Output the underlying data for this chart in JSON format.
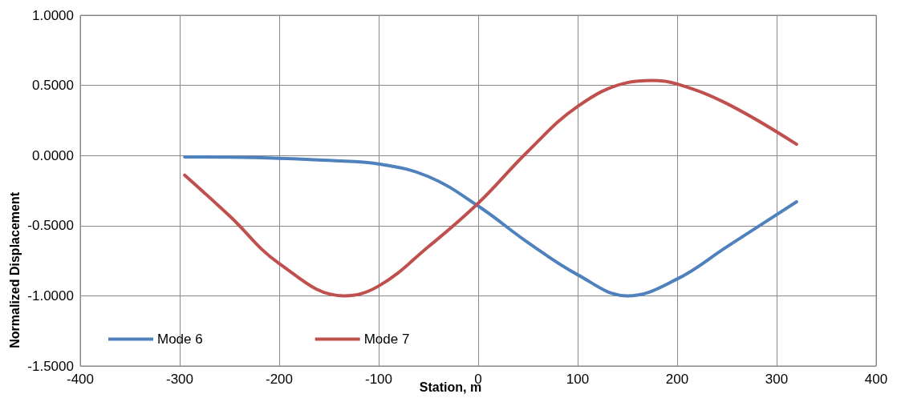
{
  "chart_data": {
    "type": "line",
    "xlabel": "Station, m",
    "ylabel": "Normalized Displacement",
    "xlim": [
      -400,
      400
    ],
    "xticks": [
      -400,
      -300,
      -200,
      -100,
      0,
      100,
      200,
      300,
      400
    ],
    "ylim": [
      -1.5,
      1
    ],
    "yticks": [
      {
        "value": -1.5,
        "label": "-1.5000"
      },
      {
        "value": -1,
        "label": "-1.0000"
      },
      {
        "value": -0.5,
        "label": "-0.5000"
      },
      {
        "value": 0,
        "label": "0.0000"
      },
      {
        "value": 0.5,
        "label": "0.5000"
      },
      {
        "value": 1,
        "label": "1.0000"
      }
    ],
    "grid": true,
    "legend": "bottom left",
    "marker": "none",
    "line_style": "solid",
    "series": [
      {
        "name": "Mode 6",
        "color": "#4f81bd",
        "x": [
          -295,
          -250,
          -200,
          -150,
          -100,
          -50,
          0,
          50,
          100,
          150,
          200,
          250,
          320
        ],
        "values": [
          -0.01,
          -0.012,
          -0.02,
          -0.035,
          -0.06,
          -0.15,
          -0.36,
          -0.62,
          -0.85,
          -1.0,
          -0.88,
          -0.65,
          -0.33
        ]
      },
      {
        "name": "Mode 7",
        "color": "#c0504d",
        "x": [
          -295,
          -250,
          -200,
          -135,
          -100,
          -50,
          0,
          50,
          100,
          150,
          175,
          200,
          250,
          320
        ],
        "values": [
          -0.14,
          -0.43,
          -0.77,
          -1.0,
          -0.93,
          -0.65,
          -0.34,
          0.03,
          0.35,
          0.52,
          0.535,
          0.51,
          0.37,
          0.08
        ]
      }
    ]
  }
}
